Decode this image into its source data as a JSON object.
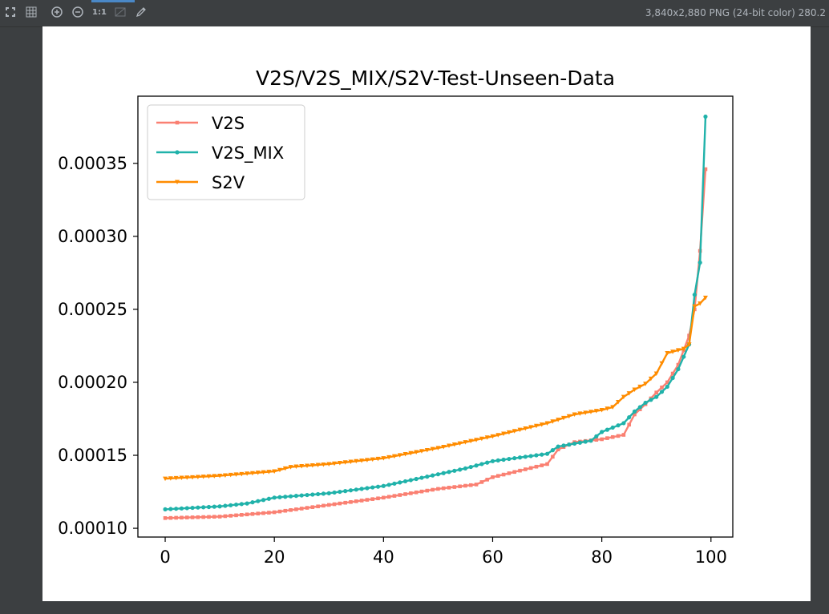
{
  "toolbar": {
    "icons": [
      "fit-screen-icon",
      "grid-icon",
      "zoom-in-icon",
      "zoom-out-icon",
      "actual-size-icon",
      "background-icon",
      "color-picker-icon"
    ],
    "actual_size_label": "1:1",
    "image_info": "3,840x2,880 PNG (24-bit color) 280.2"
  },
  "chart_data": {
    "type": "line",
    "title": "V2S/V2S_MIX/S2V-Test-Unseen-Data",
    "xlabel": "",
    "ylabel": "",
    "xlim": [
      -5,
      104
    ],
    "ylim": [
      9.4e-05,
      0.000396
    ],
    "xticks": [
      0,
      20,
      40,
      60,
      80,
      100
    ],
    "xtick_labels": [
      "0",
      "20",
      "40",
      "60",
      "80",
      "100"
    ],
    "yticks": [
      0.0001,
      0.00015,
      0.0002,
      0.00025,
      0.0003,
      0.00035
    ],
    "ytick_labels": [
      "0.00010",
      "0.00015",
      "0.00020",
      "0.00025",
      "0.00030",
      "0.00035"
    ],
    "legend_position": "top-left",
    "grid": false,
    "series": [
      {
        "name": "V2S",
        "color": "#fa8072",
        "marker": "square",
        "anchors": [
          [
            0,
            0.000107
          ],
          [
            10,
            0.000108
          ],
          [
            20,
            0.000111
          ],
          [
            30,
            0.000116
          ],
          [
            40,
            0.000121
          ],
          [
            50,
            0.000127
          ],
          [
            57,
            0.00013
          ],
          [
            60,
            0.000135
          ],
          [
            70,
            0.000144
          ],
          [
            72,
            0.000154
          ],
          [
            75,
            0.000159
          ],
          [
            80,
            0.000161
          ],
          [
            84,
            0.000164
          ],
          [
            86,
            0.000178
          ],
          [
            88,
            0.000185
          ],
          [
            90,
            0.000193
          ],
          [
            92,
            0.0002
          ],
          [
            94,
            0.000212
          ],
          [
            96,
            0.000232
          ],
          [
            97,
            0.00025
          ],
          [
            98,
            0.00029
          ],
          [
            99,
            0.000346
          ]
        ]
      },
      {
        "name": "V2S_MIX",
        "color": "#20b2aa",
        "marker": "circle",
        "anchors": [
          [
            0,
            0.000113
          ],
          [
            10,
            0.000115
          ],
          [
            15,
            0.000117
          ],
          [
            20,
            0.000121
          ],
          [
            30,
            0.000124
          ],
          [
            40,
            0.000129
          ],
          [
            50,
            0.000137
          ],
          [
            55,
            0.000141
          ],
          [
            60,
            0.000146
          ],
          [
            70,
            0.000151
          ],
          [
            72,
            0.000156
          ],
          [
            78,
            0.00016
          ],
          [
            80,
            0.000166
          ],
          [
            84,
            0.000172
          ],
          [
            86,
            0.00018
          ],
          [
            88,
            0.000186
          ],
          [
            90,
            0.00019
          ],
          [
            92,
            0.000197
          ],
          [
            94,
            0.000209
          ],
          [
            96,
            0.000226
          ],
          [
            97,
            0.00026
          ],
          [
            98,
            0.000282
          ],
          [
            99,
            0.000382
          ]
        ]
      },
      {
        "name": "S2V",
        "color": "#ff8c00",
        "marker": "triangle-down",
        "anchors": [
          [
            0,
            0.000134
          ],
          [
            10,
            0.000136
          ],
          [
            20,
            0.000139
          ],
          [
            23,
            0.000142
          ],
          [
            30,
            0.000144
          ],
          [
            40,
            0.000148
          ],
          [
            50,
            0.000155
          ],
          [
            60,
            0.000163
          ],
          [
            70,
            0.000172
          ],
          [
            75,
            0.000178
          ],
          [
            80,
            0.000181
          ],
          [
            82,
            0.000183
          ],
          [
            84,
            0.00019
          ],
          [
            86,
            0.000195
          ],
          [
            88,
            0.000199
          ],
          [
            90,
            0.000206
          ],
          [
            92,
            0.00022
          ],
          [
            95,
            0.000223
          ],
          [
            96,
            0.000226
          ],
          [
            97,
            0.000252
          ],
          [
            98,
            0.000254
          ],
          [
            99,
            0.000258
          ]
        ]
      }
    ]
  }
}
